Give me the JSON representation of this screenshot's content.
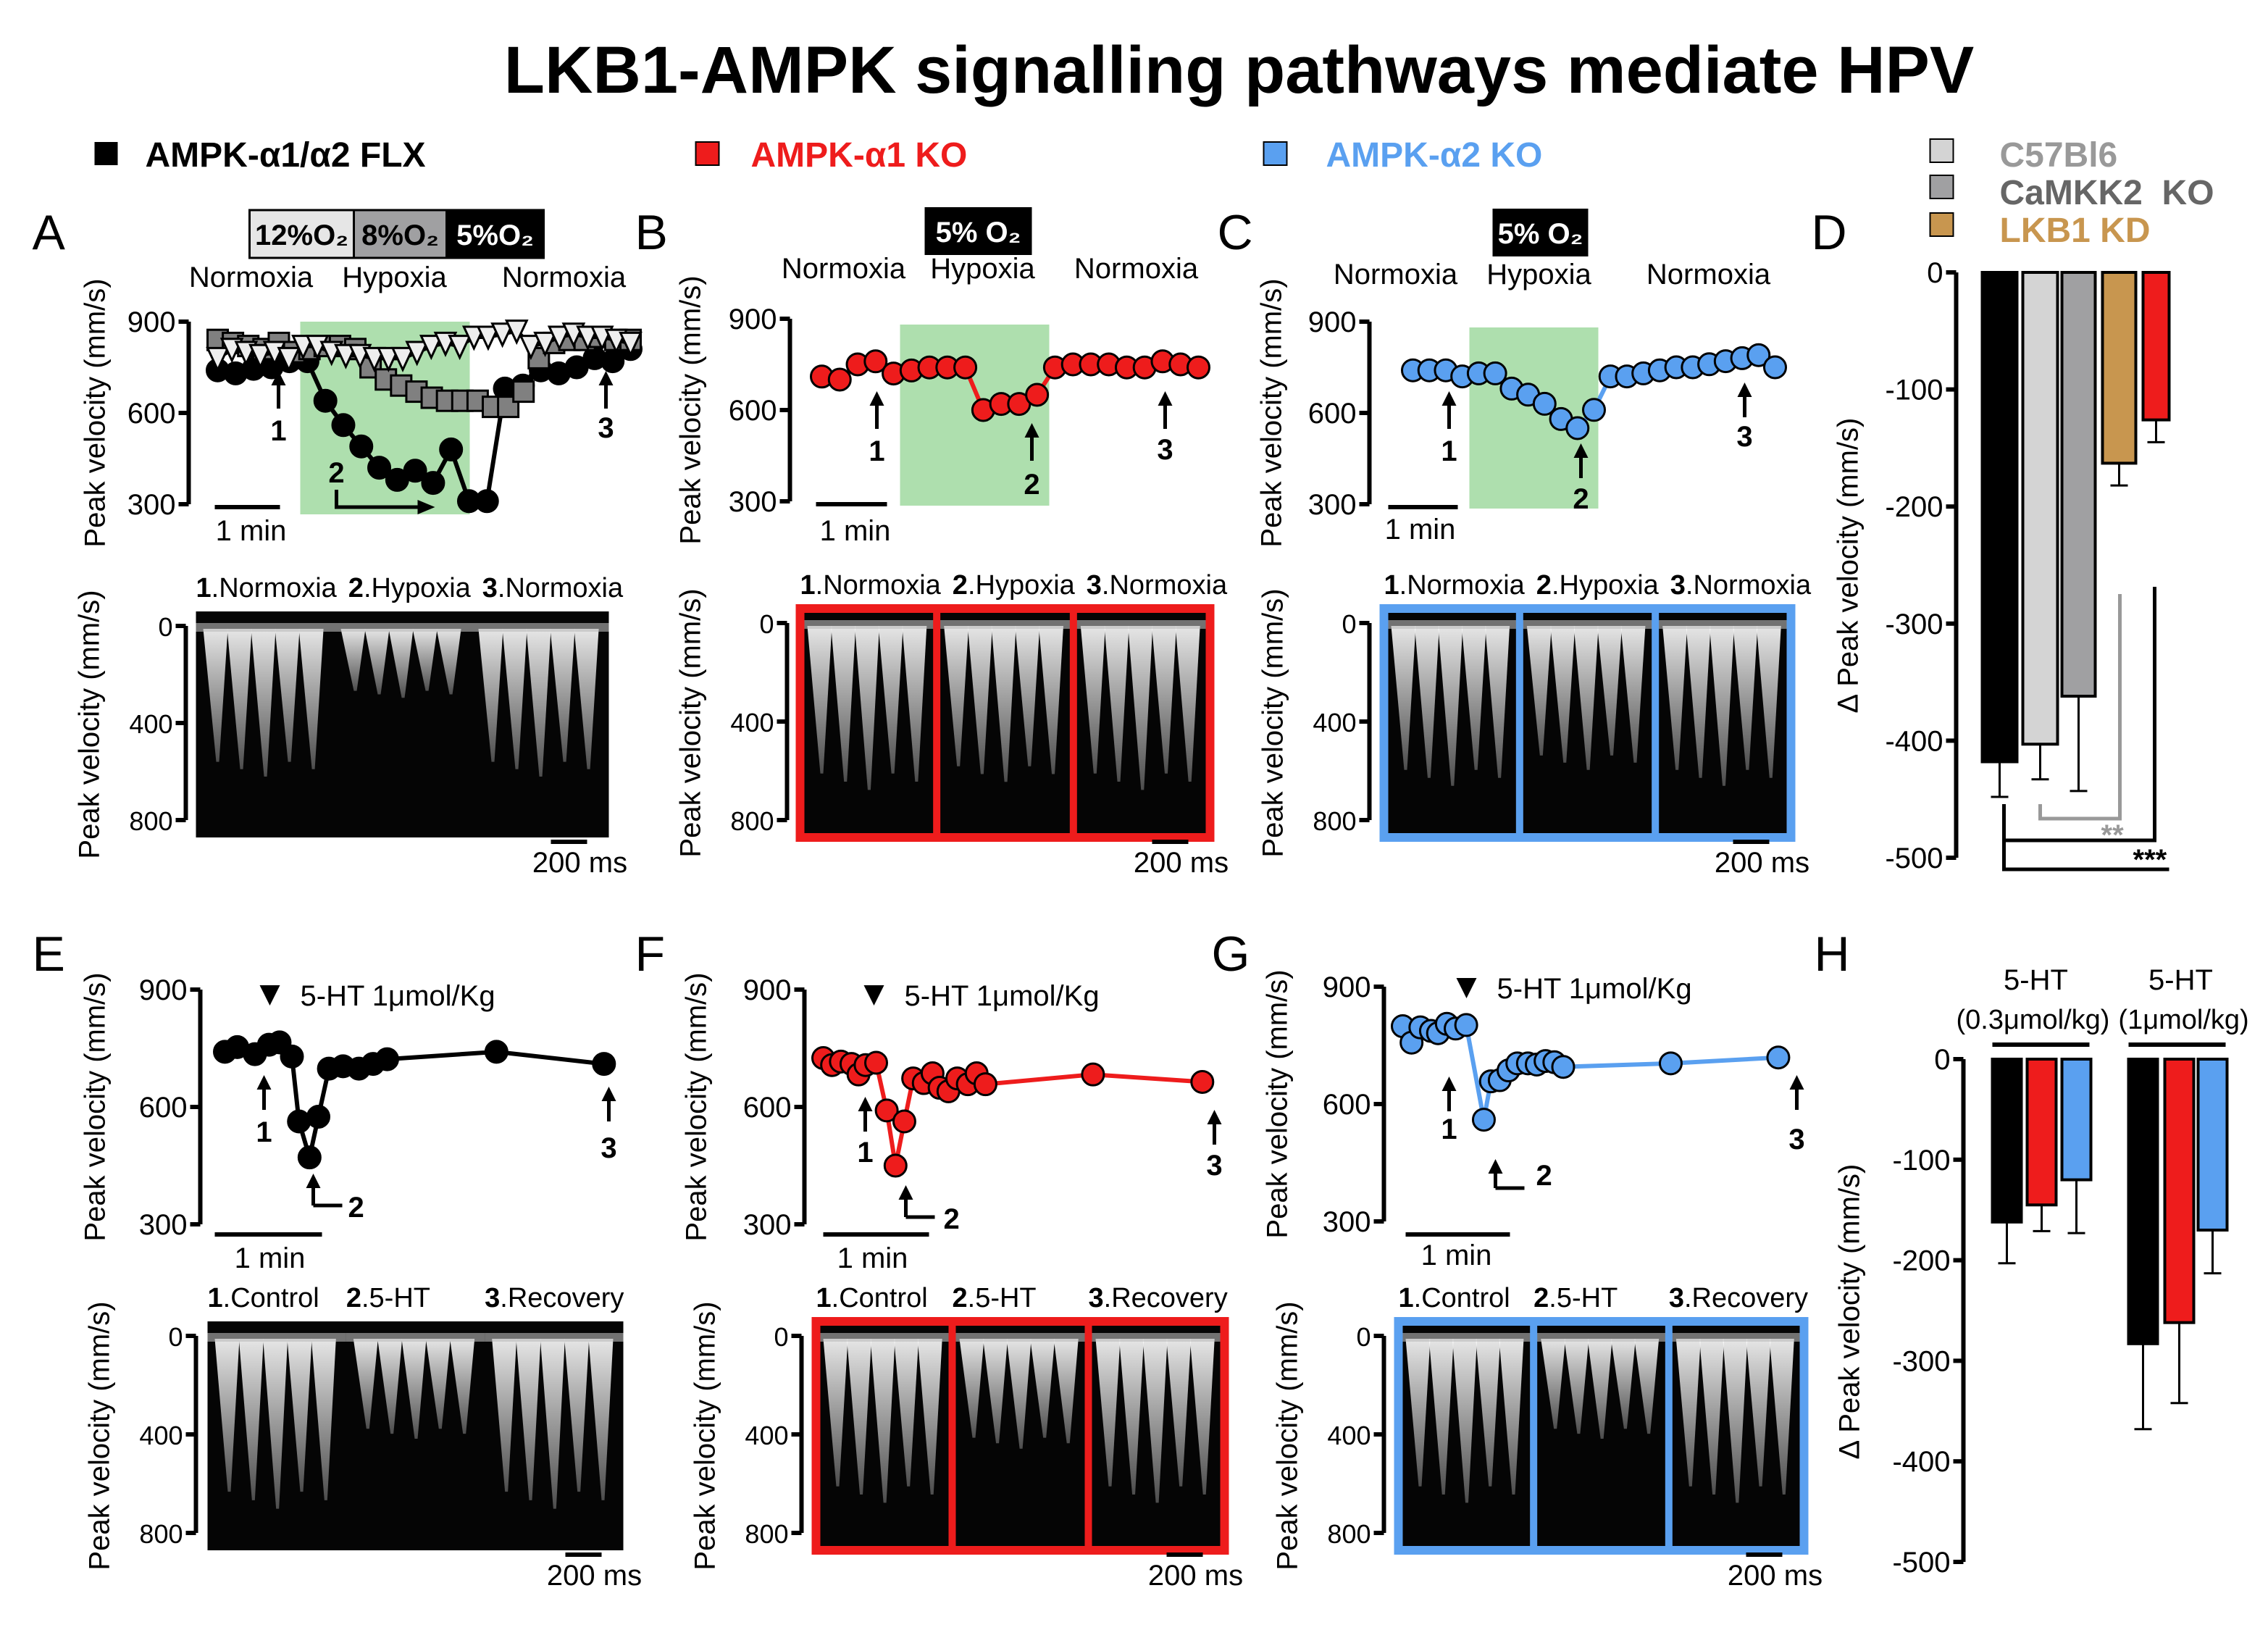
{
  "title": "LKB1-AMPK signalling pathways mediate HPV",
  "legend": [
    {
      "label": "AMPK-α1/α2 FLX",
      "color": "#000000"
    },
    {
      "label": "AMPK-α1 KO",
      "color": "#ee1c1c"
    },
    {
      "label": "AMPK-α2 KO",
      "color": "#5aa0f0"
    }
  ],
  "legend_d": [
    {
      "label": "C57Bl6",
      "color": "#d4d4d4",
      "text_color": "#999999"
    },
    {
      "label": "CaMKK2  KO",
      "color": "#a0a0a2",
      "text_color": "#666666"
    },
    {
      "label": "LKB1 KD",
      "color": "#c8964f",
      "text_color": "#c8964f"
    }
  ],
  "panel_letters": {
    "A": "A",
    "B": "B",
    "C": "C",
    "D": "D",
    "E": "E",
    "F": "F",
    "G": "G",
    "H": "H"
  },
  "o2_boxes_a": [
    {
      "label": "12%O₂",
      "fill": "#e6e6e6",
      "text": "#000000"
    },
    {
      "label": "8%O₂",
      "fill": "#a0a0a2",
      "text": "#000000"
    },
    {
      "label": "5%O₂",
      "fill": "#000000",
      "text": "#ffffff"
    }
  ],
  "o2_box_bc": "5% O₂",
  "phase_labels": [
    "Normoxia",
    "Hypoxia",
    "Normoxia"
  ],
  "scale_min": "1 min",
  "scale_ms": "200 ms",
  "y_label": "Peak velocity (mm/s)",
  "delta_y_label": "∆ Peak velocity (mm/s)",
  "doppler_labels_hypoxia": [
    [
      "1",
      ".Normoxia"
    ],
    [
      "2",
      ".Hypoxia"
    ],
    [
      "3",
      ".Normoxia"
    ]
  ],
  "doppler_labels_5ht": [
    [
      "1",
      ".Control"
    ],
    [
      "2",
      ".5-HT"
    ],
    [
      "3",
      ".Recovery"
    ]
  ],
  "doppler_yticks": [
    0,
    400,
    800
  ],
  "drug_label": "5-HT 1μmol/Kg",
  "arrow_labels": [
    "1",
    "2",
    "3"
  ],
  "significance": {
    "gray": "**",
    "black": "***"
  },
  "chart_data": [
    {
      "panel": "A",
      "type": "line",
      "ylabel": "Peak velocity (mm/s)",
      "ylim": [
        300,
        900
      ],
      "yticks": [
        300,
        600,
        900
      ],
      "x": "sample index",
      "series": [
        {
          "marker": "circle",
          "color": "#000000",
          "values": [
            740,
            730,
            745,
            750,
            770,
            770,
            640,
            560,
            490,
            420,
            380,
            410,
            370,
            480,
            310,
            310,
            680,
            690,
            740,
            730,
            750,
            780,
            770,
            810
          ]
        },
        {
          "marker": "square",
          "color": "#808080",
          "values": [
            840,
            830,
            820,
            810,
            830,
            800,
            810,
            820,
            820,
            810,
            750,
            710,
            690,
            670,
            650,
            640,
            640,
            640,
            620,
            620,
            670,
            780,
            830,
            840,
            840,
            850,
            840,
            840
          ]
        },
        {
          "marker": "triangle-down",
          "color": "#eeeeee",
          "values": [
            780,
            810,
            800,
            790,
            800,
            780,
            820,
            820,
            800,
            790,
            790,
            780,
            780,
            780,
            800,
            820,
            830,
            820,
            850,
            850,
            860,
            870,
            820,
            830,
            850,
            860,
            850,
            850,
            840,
            830
          ]
        }
      ]
    },
    {
      "panel": "B",
      "type": "line",
      "ylabel": "Peak velocity (mm/s)",
      "ylim": [
        300,
        900
      ],
      "yticks": [
        300,
        600,
        900
      ],
      "series": [
        {
          "marker": "circle",
          "color": "#ee1c1c",
          "values": [
            710,
            700,
            750,
            760,
            720,
            730,
            740,
            740,
            740,
            600,
            620,
            620,
            650,
            740,
            750,
            750,
            750,
            740,
            740,
            760,
            750,
            740
          ]
        }
      ]
    },
    {
      "panel": "C",
      "type": "line",
      "ylabel": "Peak velocity (mm/s)",
      "ylim": [
        300,
        900
      ],
      "yticks": [
        300,
        600,
        900
      ],
      "series": [
        {
          "marker": "circle",
          "color": "#5aa0f0",
          "values": [
            740,
            740,
            740,
            720,
            730,
            730,
            680,
            660,
            630,
            580,
            550,
            610,
            720,
            720,
            730,
            740,
            750,
            750,
            760,
            770,
            780,
            790,
            750
          ]
        }
      ]
    },
    {
      "panel": "D",
      "type": "bar",
      "ylabel": "∆ Peak velocity (mm/s)",
      "ylim": [
        -500,
        0
      ],
      "yticks": [
        0,
        -100,
        -200,
        -300,
        -400,
        -500
      ],
      "categories": [
        "AMPK-α1/α2 FLX",
        "C57Bl6",
        "CaMKK2  KO",
        "LKB1 KD",
        "AMPK-α1 KO"
      ],
      "colors": [
        "#000000",
        "#d4d4d4",
        "#a0a0a2",
        "#c8964f",
        "#ee1c1c"
      ],
      "values": [
        -418,
        -403,
        -362,
        -163,
        -126
      ],
      "errors": [
        30,
        30,
        81,
        19,
        19
      ]
    },
    {
      "panel": "E",
      "type": "line",
      "ylabel": "Peak velocity (mm/s)",
      "ylim": [
        300,
        900
      ],
      "yticks": [
        300,
        600,
        900
      ],
      "series": [
        {
          "marker": "circle",
          "color": "#000000",
          "x": [
            0,
            7,
            17,
            25,
            31,
            38,
            42,
            48,
            53,
            59,
            67,
            76,
            84,
            92,
            154,
            215
          ],
          "values": [
            741,
            753,
            735,
            759,
            765,
            729,
            563,
            471,
            575,
            698,
            704,
            698,
            710,
            722,
            741,
            710
          ]
        }
      ]
    },
    {
      "panel": "F",
      "type": "line",
      "ylabel": "Peak velocity (mm/s)",
      "ylim": [
        300,
        900
      ],
      "yticks": [
        300,
        600,
        900
      ],
      "series": [
        {
          "marker": "circle",
          "color": "#ee1c1c",
          "x": [
            0,
            5,
            10,
            16,
            20,
            24,
            30,
            36,
            41,
            46,
            51,
            57,
            62,
            66,
            71,
            76,
            82,
            87,
            92,
            153,
            215
          ],
          "values": [
            725,
            707,
            716,
            710,
            683,
            707,
            713,
            591,
            450,
            563,
            673,
            661,
            686,
            649,
            640,
            673,
            658,
            686,
            658,
            683,
            664
          ]
        }
      ]
    },
    {
      "panel": "G",
      "type": "line",
      "ylabel": "Peak velocity (mm/s)",
      "ylim": [
        300,
        900
      ],
      "yticks": [
        300,
        600,
        900
      ],
      "series": [
        {
          "marker": "circle",
          "color": "#5aa0f0",
          "x": [
            0,
            5,
            10,
            16,
            20,
            25,
            30,
            36,
            46,
            50,
            55,
            60,
            65,
            71,
            76,
            81,
            86,
            91,
            152,
            213
          ],
          "values": [
            799,
            757,
            796,
            787,
            781,
            805,
            793,
            802,
            560,
            658,
            661,
            686,
            704,
            704,
            701,
            710,
            707,
            695,
            704,
            719
          ]
        }
      ]
    },
    {
      "panel": "H",
      "type": "bar",
      "ylabel": "∆ Peak velocity (mm/s)",
      "ylim": [
        -500,
        0
      ],
      "yticks": [
        0,
        -100,
        -200,
        -300,
        -400,
        -500
      ],
      "categories": [
        [
          "5-HT",
          "(0.3μmol/kg)"
        ],
        [
          "5-HT",
          "(1μmol/kg)"
        ]
      ],
      "series": [
        {
          "color": "#000000",
          "values": [
            -162,
            -283
          ],
          "errors": [
            41,
            85
          ]
        },
        {
          "color": "#ee1c1c",
          "values": [
            -145,
            -262
          ],
          "errors": [
            26,
            80
          ]
        },
        {
          "color": "#5aa0f0",
          "values": [
            -120,
            -170
          ],
          "errors": [
            53,
            43
          ]
        }
      ]
    }
  ]
}
